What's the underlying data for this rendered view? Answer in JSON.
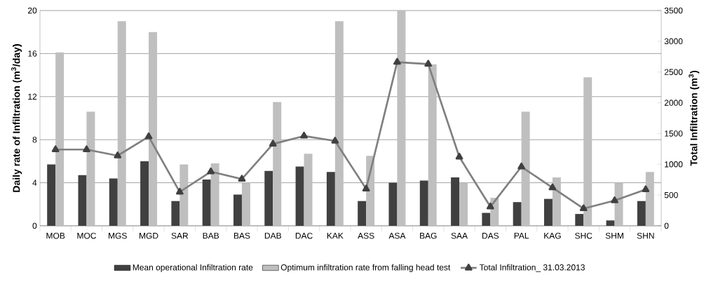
{
  "chart_data": {
    "type": "bar",
    "ylabel": "Daily rate of Infiltration (m$^{3}$/day)",
    "y2label": "Total Infiltration (m$^{3}$)",
    "categories": [
      "MOB",
      "MOC",
      "MGS",
      "MGD",
      "SAR",
      "BAB",
      "BAS",
      "DAB",
      "DAC",
      "KAK",
      "ASS",
      "ASA",
      "BAG",
      "SAA",
      "DAS",
      "PAL",
      "KAG",
      "SHC",
      "SHM",
      "SHN"
    ],
    "series": [
      {
        "name": "Mean operational Infiltration rate",
        "color": "#404040",
        "values": [
          5.7,
          4.7,
          4.4,
          6.0,
          2.3,
          4.3,
          2.9,
          5.1,
          5.5,
          5.0,
          2.3,
          4.0,
          4.2,
          4.5,
          1.2,
          2.2,
          2.5,
          1.1,
          0.5,
          2.3
        ]
      },
      {
        "name": "Optimum infiltration rate from falling head test",
        "color": "#bfbfbf",
        "values": [
          16.1,
          10.6,
          19.0,
          18.0,
          5.7,
          5.8,
          4.0,
          11.5,
          6.7,
          19.0,
          6.5,
          20.0,
          15.0,
          4.0,
          2.6,
          10.6,
          4.5,
          13.8,
          4.0,
          5.0
        ]
      },
      {
        "name": "Total Infiltration_ 31.03.2013",
        "type": "line",
        "axis": "y2",
        "color": "#808080",
        "marker": "triangle",
        "values": [
          1240,
          1240,
          1140,
          1450,
          550,
          880,
          760,
          1330,
          1460,
          1380,
          600,
          2660,
          2630,
          1120,
          310,
          960,
          620,
          280,
          410,
          590
        ]
      }
    ],
    "ylim": [
      0,
      20
    ],
    "yticks": [
      0,
      4,
      8,
      12,
      16,
      20
    ],
    "y2lim": [
      0,
      3500
    ],
    "y2ticks": [
      0,
      500,
      1000,
      1500,
      2000,
      2500,
      3000,
      3500
    ],
    "grid": "y",
    "legend": "bottom"
  }
}
